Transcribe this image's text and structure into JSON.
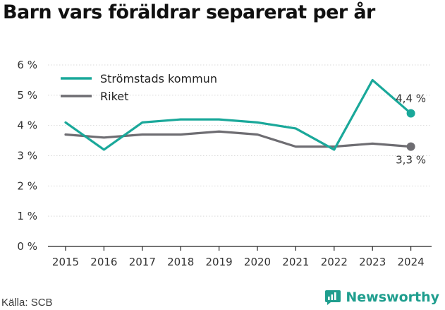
{
  "title": "Barn vars föräldrar separerat per år",
  "source": "Källa: SCB",
  "brand": {
    "name": "Newsworthy",
    "icon": "newsworthy-logo-icon",
    "color": "#1f9e8e"
  },
  "chart_data": {
    "type": "line",
    "title": "Barn vars föräldrar separerat per år",
    "xlabel": "",
    "ylabel": "",
    "x": [
      "2015",
      "2016",
      "2017",
      "2018",
      "2019",
      "2020",
      "2021",
      "2022",
      "2023",
      "2024"
    ],
    "ylim": [
      0,
      6
    ],
    "yticks": [
      0,
      1,
      2,
      3,
      4,
      5,
      6
    ],
    "ytick_labels": [
      "0 %",
      "1 %",
      "2 %",
      "3 %",
      "4 %",
      "5 %",
      "6 %"
    ],
    "grid": "horizontal",
    "legend_position": "top-left",
    "series": [
      {
        "name": "Strömstads kommun",
        "color": "#1aa89a",
        "values": [
          4.1,
          3.2,
          4.1,
          4.2,
          4.2,
          4.1,
          3.9,
          3.2,
          5.5,
          4.4
        ],
        "end_label": "4,4 %"
      },
      {
        "name": "Riket",
        "color": "#6e6d72",
        "values": [
          3.7,
          3.6,
          3.7,
          3.7,
          3.8,
          3.7,
          3.3,
          3.3,
          3.4,
          3.3
        ],
        "end_label": "3,3 %"
      }
    ]
  }
}
